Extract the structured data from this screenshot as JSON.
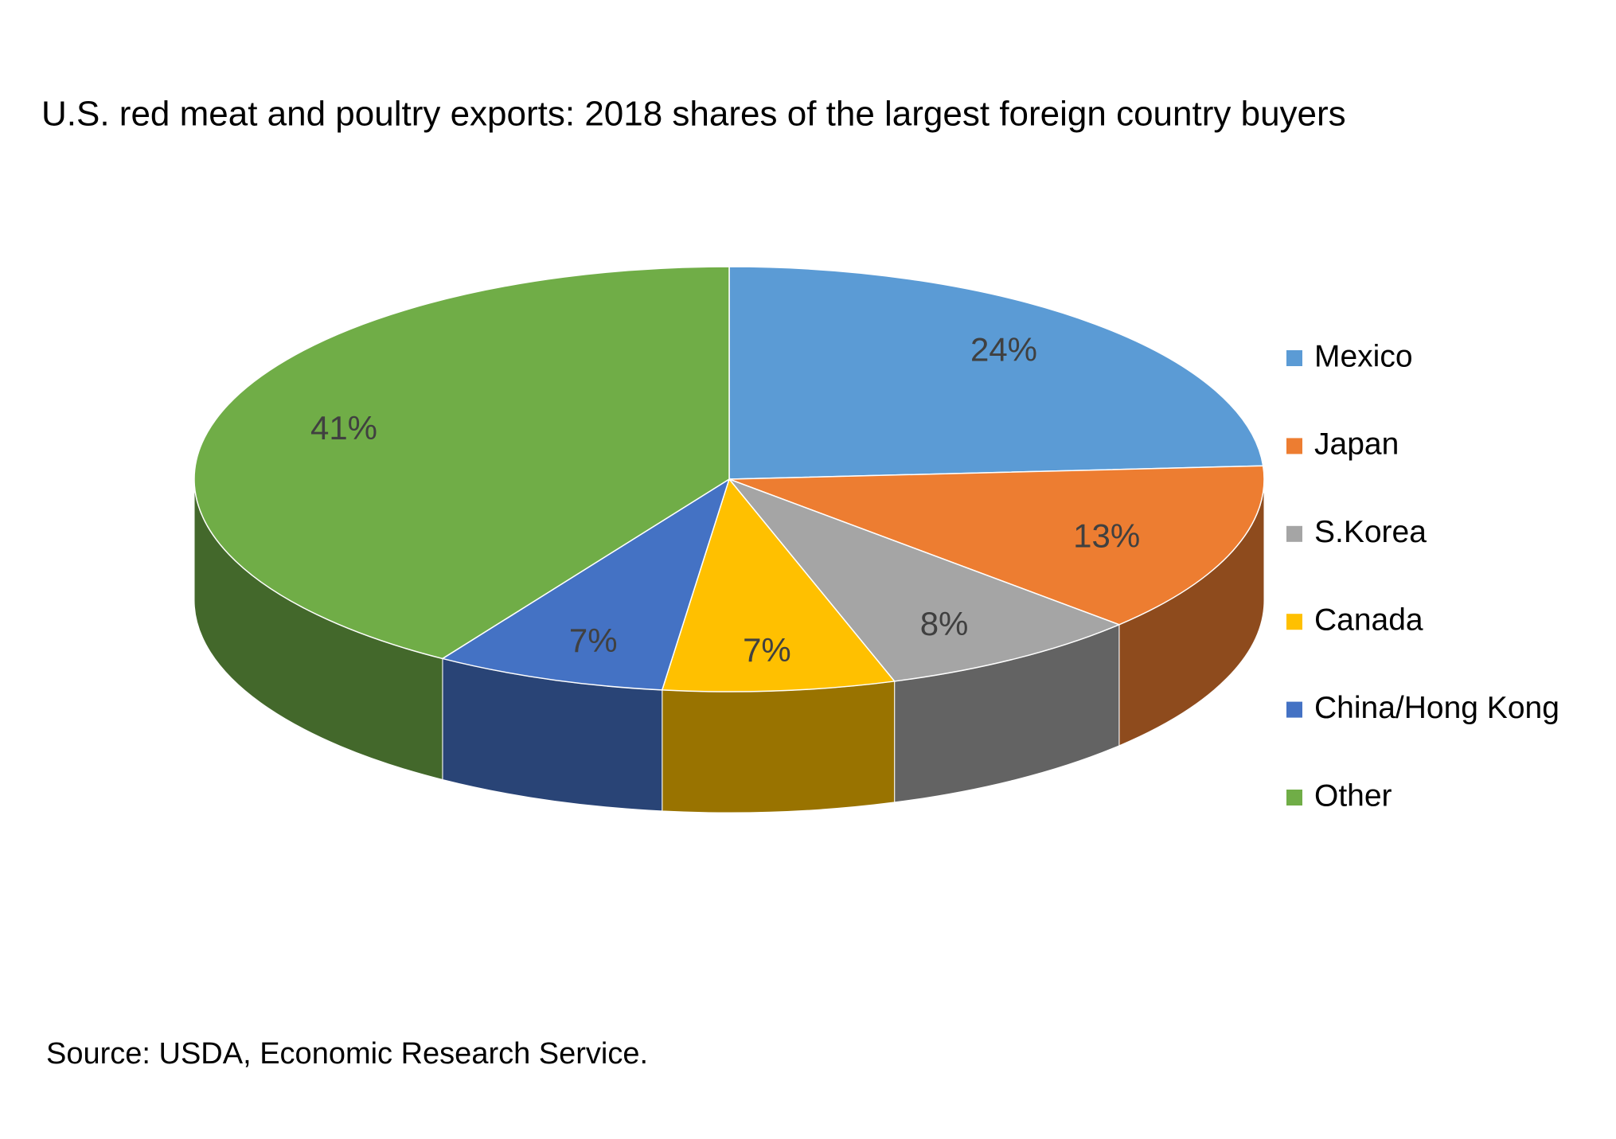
{
  "chart_data": {
    "type": "pie",
    "title": "U.S. red meat and poultry exports: 2018 shares of the largest foreign country buyers",
    "categories": [
      "Mexico",
      "Japan",
      "S.Korea",
      "Canada",
      "China/Hong Kong",
      "Other"
    ],
    "values": [
      24,
      13,
      8,
      7,
      7,
      41
    ],
    "value_labels": [
      "24%",
      "13%",
      "8%",
      "7%",
      "7%",
      "41%"
    ],
    "colors": [
      "#5B9BD5",
      "#ED7D31",
      "#A5A5A5",
      "#FFC000",
      "#4472C4",
      "#70AD47"
    ],
    "legend": "right",
    "source": "Source: USDA, Economic Research Service."
  }
}
